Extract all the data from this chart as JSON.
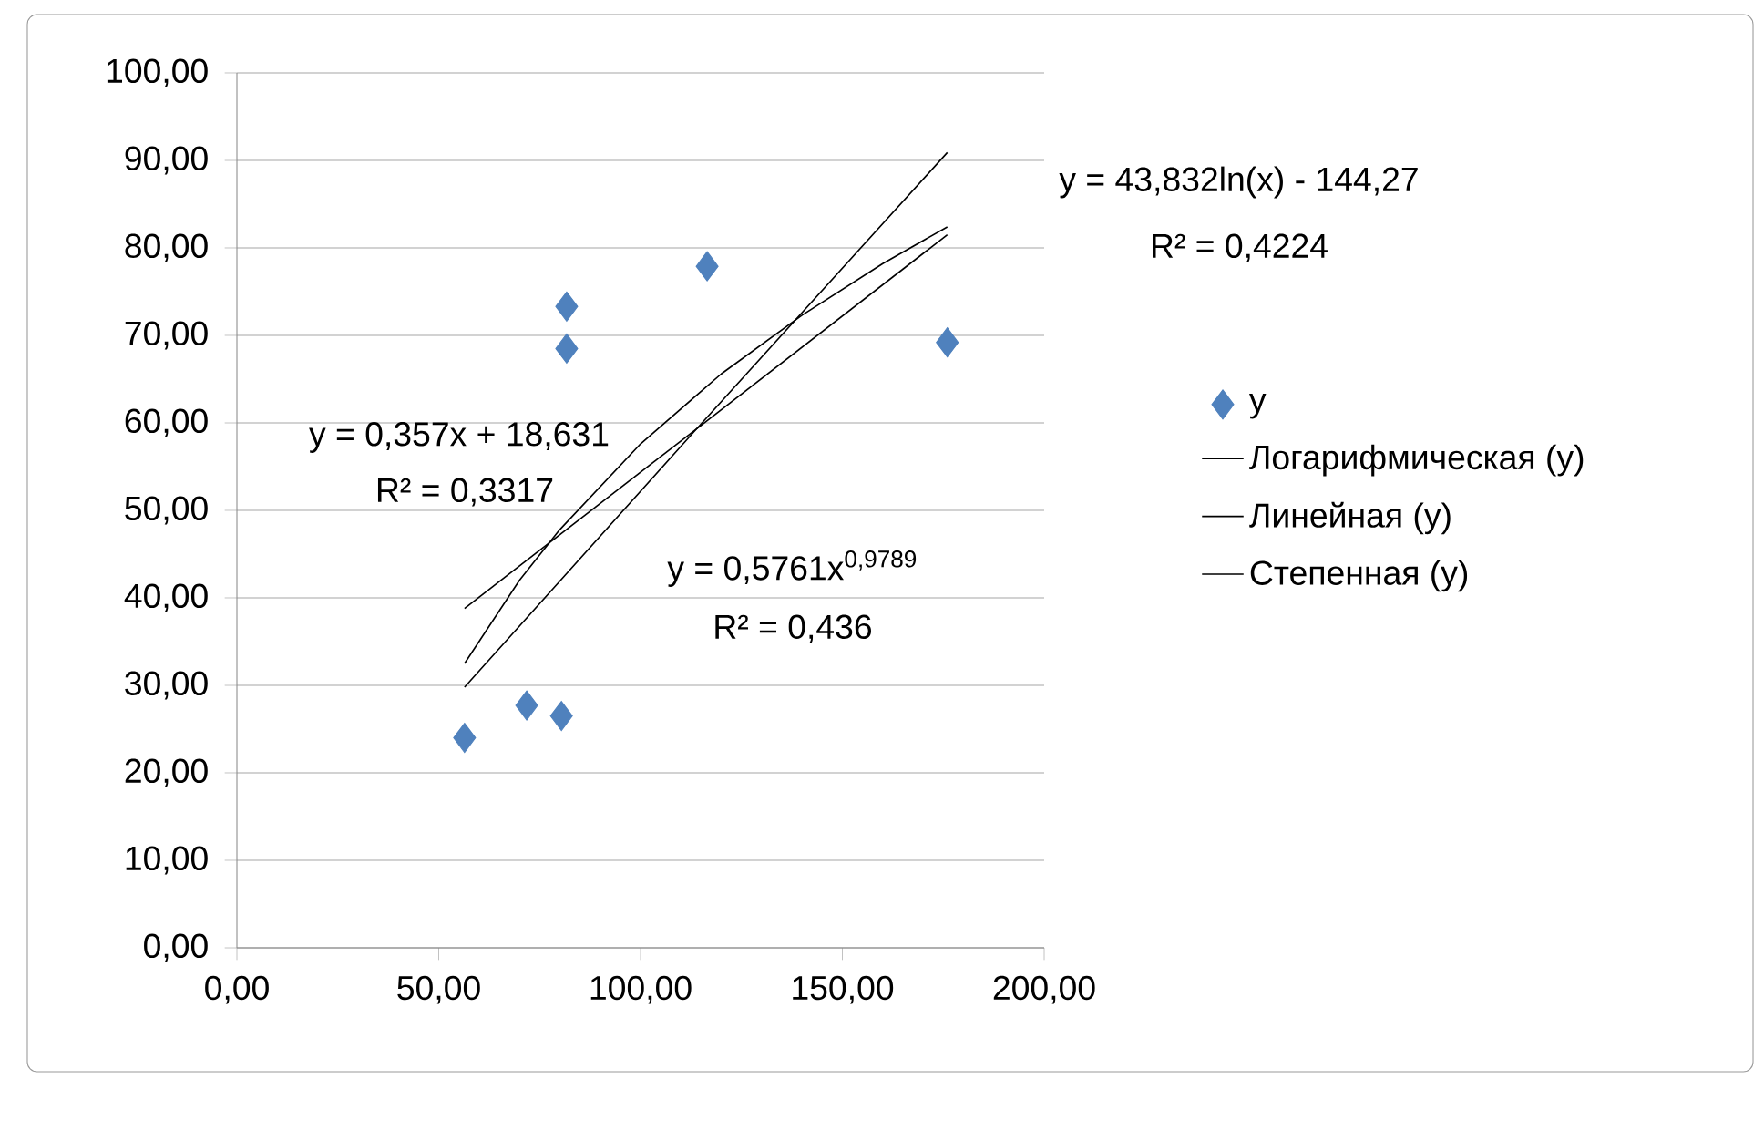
{
  "chart_data": {
    "type": "scatter",
    "grid": "y",
    "legend": "right",
    "xlim": [
      0,
      200
    ],
    "ylim": [
      0,
      100
    ],
    "xticks": [
      {
        "value": 0,
        "label": "0,00"
      },
      {
        "value": 50,
        "label": "50,00"
      },
      {
        "value": 100,
        "label": "100,00"
      },
      {
        "value": 150,
        "label": "150,00"
      },
      {
        "value": 200,
        "label": "200,00"
      }
    ],
    "yticks": [
      {
        "value": 0,
        "label": "0,00"
      },
      {
        "value": 10,
        "label": "10,00"
      },
      {
        "value": 20,
        "label": "20,00"
      },
      {
        "value": 30,
        "label": "30,00"
      },
      {
        "value": 40,
        "label": "40,00"
      },
      {
        "value": 50,
        "label": "50,00"
      },
      {
        "value": 60,
        "label": "60,00"
      },
      {
        "value": 70,
        "label": "70,00"
      },
      {
        "value": 80,
        "label": "80,00"
      },
      {
        "value": 90,
        "label": "90,00"
      },
      {
        "value": 100,
        "label": "100,00"
      }
    ],
    "series": [
      {
        "name": "y",
        "marker": "diamond",
        "color": "#4f81bd",
        "x": [
          56.4,
          71.8,
          80.4,
          81.7,
          81.7,
          116.5,
          176
        ],
        "values": [
          24.0,
          27.7,
          26.5,
          73.3,
          68.5,
          77.9,
          69.2
        ]
      },
      {
        "type": "line",
        "marker": "none",
        "name": "Логарифмическая (y)",
        "color": "#000000",
        "x": [
          56.4,
          70,
          80,
          100,
          120,
          140,
          160,
          176
        ],
        "values": [
          32.5,
          42.0,
          47.8,
          57.6,
          65.6,
          72.3,
          78.2,
          82.4
        ]
      },
      {
        "type": "line",
        "marker": "none",
        "name": "Линейная (y)",
        "color": "#000000",
        "x": [
          56.4,
          176
        ],
        "values": [
          38.8,
          81.5
        ]
      },
      {
        "type": "line",
        "marker": "none",
        "name": "Степенная (y)",
        "color": "#000000",
        "x": [
          56.4,
          116,
          176
        ],
        "values": [
          29.8,
          60.4,
          90.9
        ]
      }
    ],
    "annotations": [
      "y = 43,832ln(x) - 144,27",
      "R² = 0,4224",
      "y = 0,357x + 18,631",
      "R² = 0,3317",
      "y = 0,5761x$^{0,9789}$",
      "R² = 0,436"
    ]
  }
}
